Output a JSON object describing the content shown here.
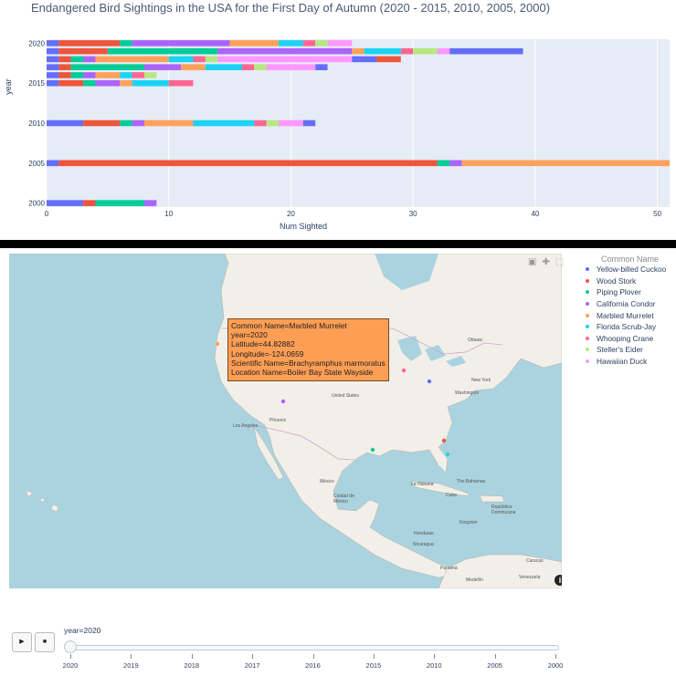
{
  "chart_data": {
    "type": "bar",
    "orientation": "horizontal",
    "barmode": "stack",
    "title": "Endangered Bird Sightings in the USA for the First Day of Autumn (2020 - 2015, 2010, 2005, 2000)",
    "xlabel": "Num Sighted",
    "ylabel": "year",
    "xlim": [
      0,
      51
    ],
    "ylim": [
      1999.5,
      2020.5
    ],
    "xticks": [
      0,
      10,
      20,
      30,
      40,
      50
    ],
    "yticks": [
      2000,
      2005,
      2010,
      2015,
      2020
    ],
    "colors": [
      "#636efa",
      "#EF553B",
      "#00cc96",
      "#ab63fa",
      "#FFA15A",
      "#19d3f3",
      "#FF6692",
      "#B6E880",
      "#FF97FF"
    ],
    "rows": [
      {
        "year": 2020,
        "segments": [
          [
            0,
            1
          ],
          [
            1,
            6
          ],
          [
            6,
            7
          ],
          [
            7,
            15
          ],
          [
            15,
            19
          ],
          [
            19,
            21
          ],
          [
            21,
            22
          ],
          [
            22,
            23
          ],
          [
            23,
            25
          ]
        ]
      },
      {
        "year": 2019,
        "segments": [
          [
            0,
            1
          ],
          [
            1,
            5
          ],
          [
            5,
            14
          ],
          [
            14,
            25
          ],
          [
            25,
            26
          ],
          [
            26,
            29
          ],
          [
            29,
            30
          ],
          [
            30,
            32
          ],
          [
            32,
            33
          ],
          [
            33,
            39
          ]
        ]
      },
      {
        "year": 2018,
        "segments": [
          [
            0,
            1
          ],
          [
            1,
            2
          ],
          [
            2,
            3
          ],
          [
            3,
            4
          ],
          [
            4,
            10
          ],
          [
            10,
            12
          ],
          [
            12,
            13
          ],
          [
            13,
            14
          ],
          [
            14,
            25
          ],
          [
            25,
            27
          ],
          [
            27,
            29
          ]
        ]
      },
      {
        "year": 2017,
        "segments": [
          [
            0,
            1
          ],
          [
            1,
            2
          ],
          [
            2,
            8
          ],
          [
            8,
            11
          ],
          [
            11,
            13
          ],
          [
            13,
            16
          ],
          [
            16,
            17
          ],
          [
            17,
            18
          ],
          [
            18,
            22
          ],
          [
            22,
            23
          ]
        ]
      },
      {
        "year": 2016,
        "segments": [
          [
            0,
            1
          ],
          [
            1,
            2
          ],
          [
            2,
            3
          ],
          [
            3,
            4
          ],
          [
            4,
            6
          ],
          [
            6,
            7
          ],
          [
            7,
            8
          ],
          [
            8,
            9
          ]
        ]
      },
      {
        "year": 2015,
        "segments": [
          [
            0,
            1
          ],
          [
            1,
            3
          ],
          [
            3,
            4
          ],
          [
            4,
            6
          ],
          [
            6,
            7
          ],
          [
            7,
            10
          ],
          [
            10,
            12
          ]
        ]
      },
      {
        "year": 2010,
        "segments": [
          [
            0,
            3
          ],
          [
            3,
            6
          ],
          [
            6,
            7
          ],
          [
            7,
            8
          ],
          [
            8,
            12
          ],
          [
            12,
            17
          ],
          [
            17,
            18
          ],
          [
            18,
            19
          ],
          [
            19,
            21
          ],
          [
            21,
            22
          ]
        ]
      },
      {
        "year": 2005,
        "segments": [
          [
            0,
            1
          ],
          [
            1,
            32
          ],
          [
            32,
            33
          ],
          [
            33,
            34
          ],
          [
            34,
            51
          ]
        ]
      },
      {
        "year": 2000,
        "segments": [
          [
            0,
            3
          ],
          [
            3,
            4
          ],
          [
            4,
            8
          ],
          [
            8,
            9
          ]
        ]
      }
    ]
  },
  "map": {
    "hover": {
      "common_name": "Common Name=Marbled Murrelet",
      "year": "year=2020",
      "latitude": "Latitude=44.82882",
      "longitude": "Longitude=-124.0659",
      "scientific_name": "Scientific Name=Brachyramphus marmoratus",
      "location_name": "Location Name=Boiler Bay State Wayside"
    },
    "places": {
      "ottawa": "Ottawa",
      "new_york": "New York",
      "washington": "Washington",
      "united_states": "United States",
      "phoenix": "Phoenix",
      "los_angeles": "Los Angeles",
      "mexico": "México",
      "ciudad": "Ciudad de México",
      "la_habana": "La Habana",
      "cuba": "Cuba",
      "bahamas": "The Bahamas",
      "republica": "República Dominicana",
      "kingston": "Kingston",
      "honduras": "Honduras",
      "nicaragua": "Nicaragua",
      "panama": "Panamá",
      "caracas": "Caracas",
      "medellin": "Medellín",
      "venezuela": "Venezuela"
    },
    "points": [
      {
        "name": "Yellow-billed Cuckoo",
        "color": "#636efa"
      },
      {
        "name": "Wood Stork",
        "color": "#EF553B"
      },
      {
        "name": "Piping Plover",
        "color": "#00cc96"
      },
      {
        "name": "California Condor",
        "color": "#ab63fa"
      },
      {
        "name": "Marbled Murrelet",
        "color": "#FFA15A"
      },
      {
        "name": "Florida Scrub-Jay",
        "color": "#19d3f3"
      },
      {
        "name": "Whooping Crane",
        "color": "#FF6692"
      }
    ]
  },
  "legend": {
    "title": "Common Name",
    "items": [
      {
        "label": "Yellow-billed Cuckoo",
        "color": "#636efa"
      },
      {
        "label": "Wood Stork",
        "color": "#EF553B"
      },
      {
        "label": "Piping Plover",
        "color": "#00cc96"
      },
      {
        "label": "California Condor",
        "color": "#ab63fa"
      },
      {
        "label": "Marbled Murrelet",
        "color": "#FFA15A"
      },
      {
        "label": "Florida Scrub-Jay",
        "color": "#19d3f3"
      },
      {
        "label": "Whooping Crane",
        "color": "#FF6692"
      },
      {
        "label": "Steller's Eider",
        "color": "#B6E880"
      },
      {
        "label": "Hawaiian Duck",
        "color": "#FF97FF"
      }
    ]
  },
  "slider": {
    "current_label": "year=2020",
    "steps": [
      "2020",
      "2019",
      "2018",
      "2017",
      "2016",
      "2015",
      "2010",
      "2005",
      "2000"
    ],
    "play_icon": "play-icon",
    "stop_icon": "stop-icon"
  }
}
